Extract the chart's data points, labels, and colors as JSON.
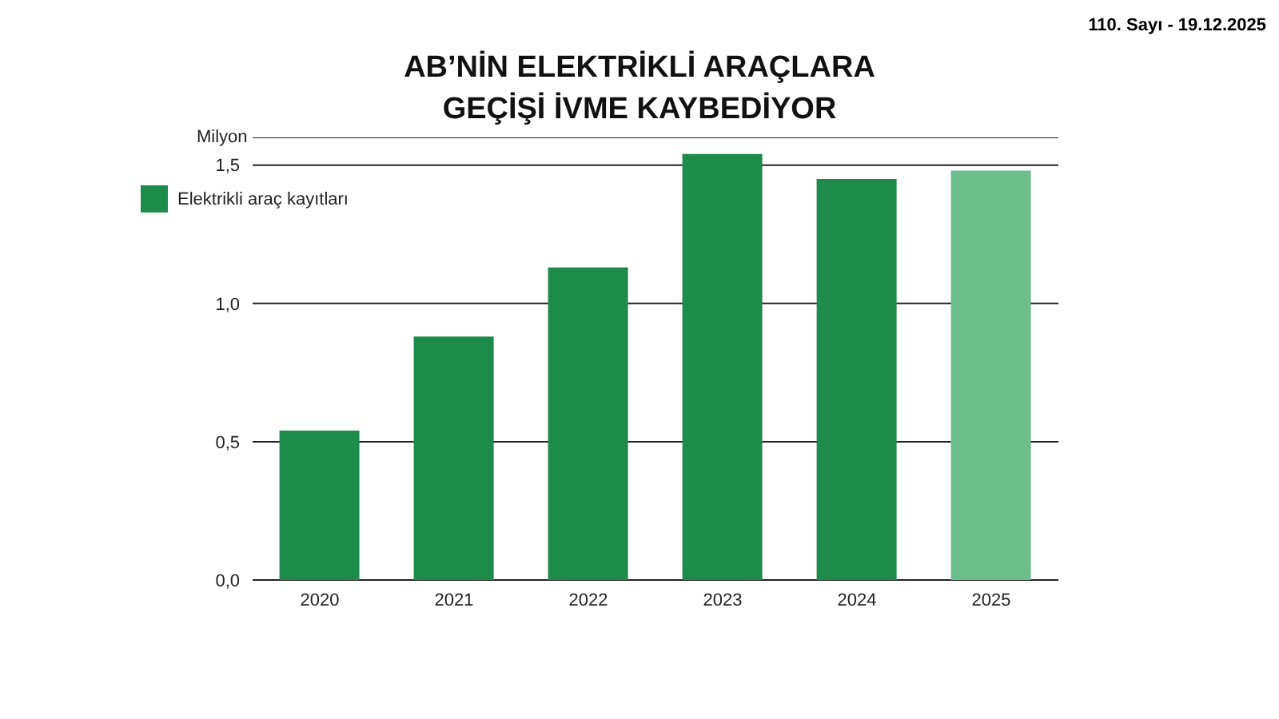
{
  "chart_data": {
    "type": "bar",
    "title": "AB’NİN ELEKTRİKLİ ARAÇLARA GEÇİŞİ İVME KAYBEDİYOR",
    "ylabel": "Milyon",
    "annotations": [
      "110. Sayı - 19.12.2025"
    ],
    "categories": [
      "2020",
      "2021",
      "2022",
      "2023",
      "2024",
      "2025"
    ],
    "series": [
      {
        "name": "Elektrikli araç kayıtları",
        "color": "#1e8a4c",
        "colors": [
          "#1e8a4c",
          "#1e8a4c",
          "#1e8a4c",
          "#1e8a4c",
          "#1e8a4c",
          "#6cbf8c"
        ],
        "values": [
          0.54,
          0.88,
          1.13,
          1.54,
          1.45,
          1.48
        ]
      }
    ],
    "ylim": [
      0,
      1.6
    ],
    "yticks": [
      {
        "value": 0,
        "label": "0,0"
      },
      {
        "value": 0.5,
        "label": "0,5"
      },
      {
        "value": 1,
        "label": "1,0"
      },
      {
        "value": 1.5,
        "label": "1,5"
      }
    ],
    "grid": "y",
    "legend": "top left"
  }
}
